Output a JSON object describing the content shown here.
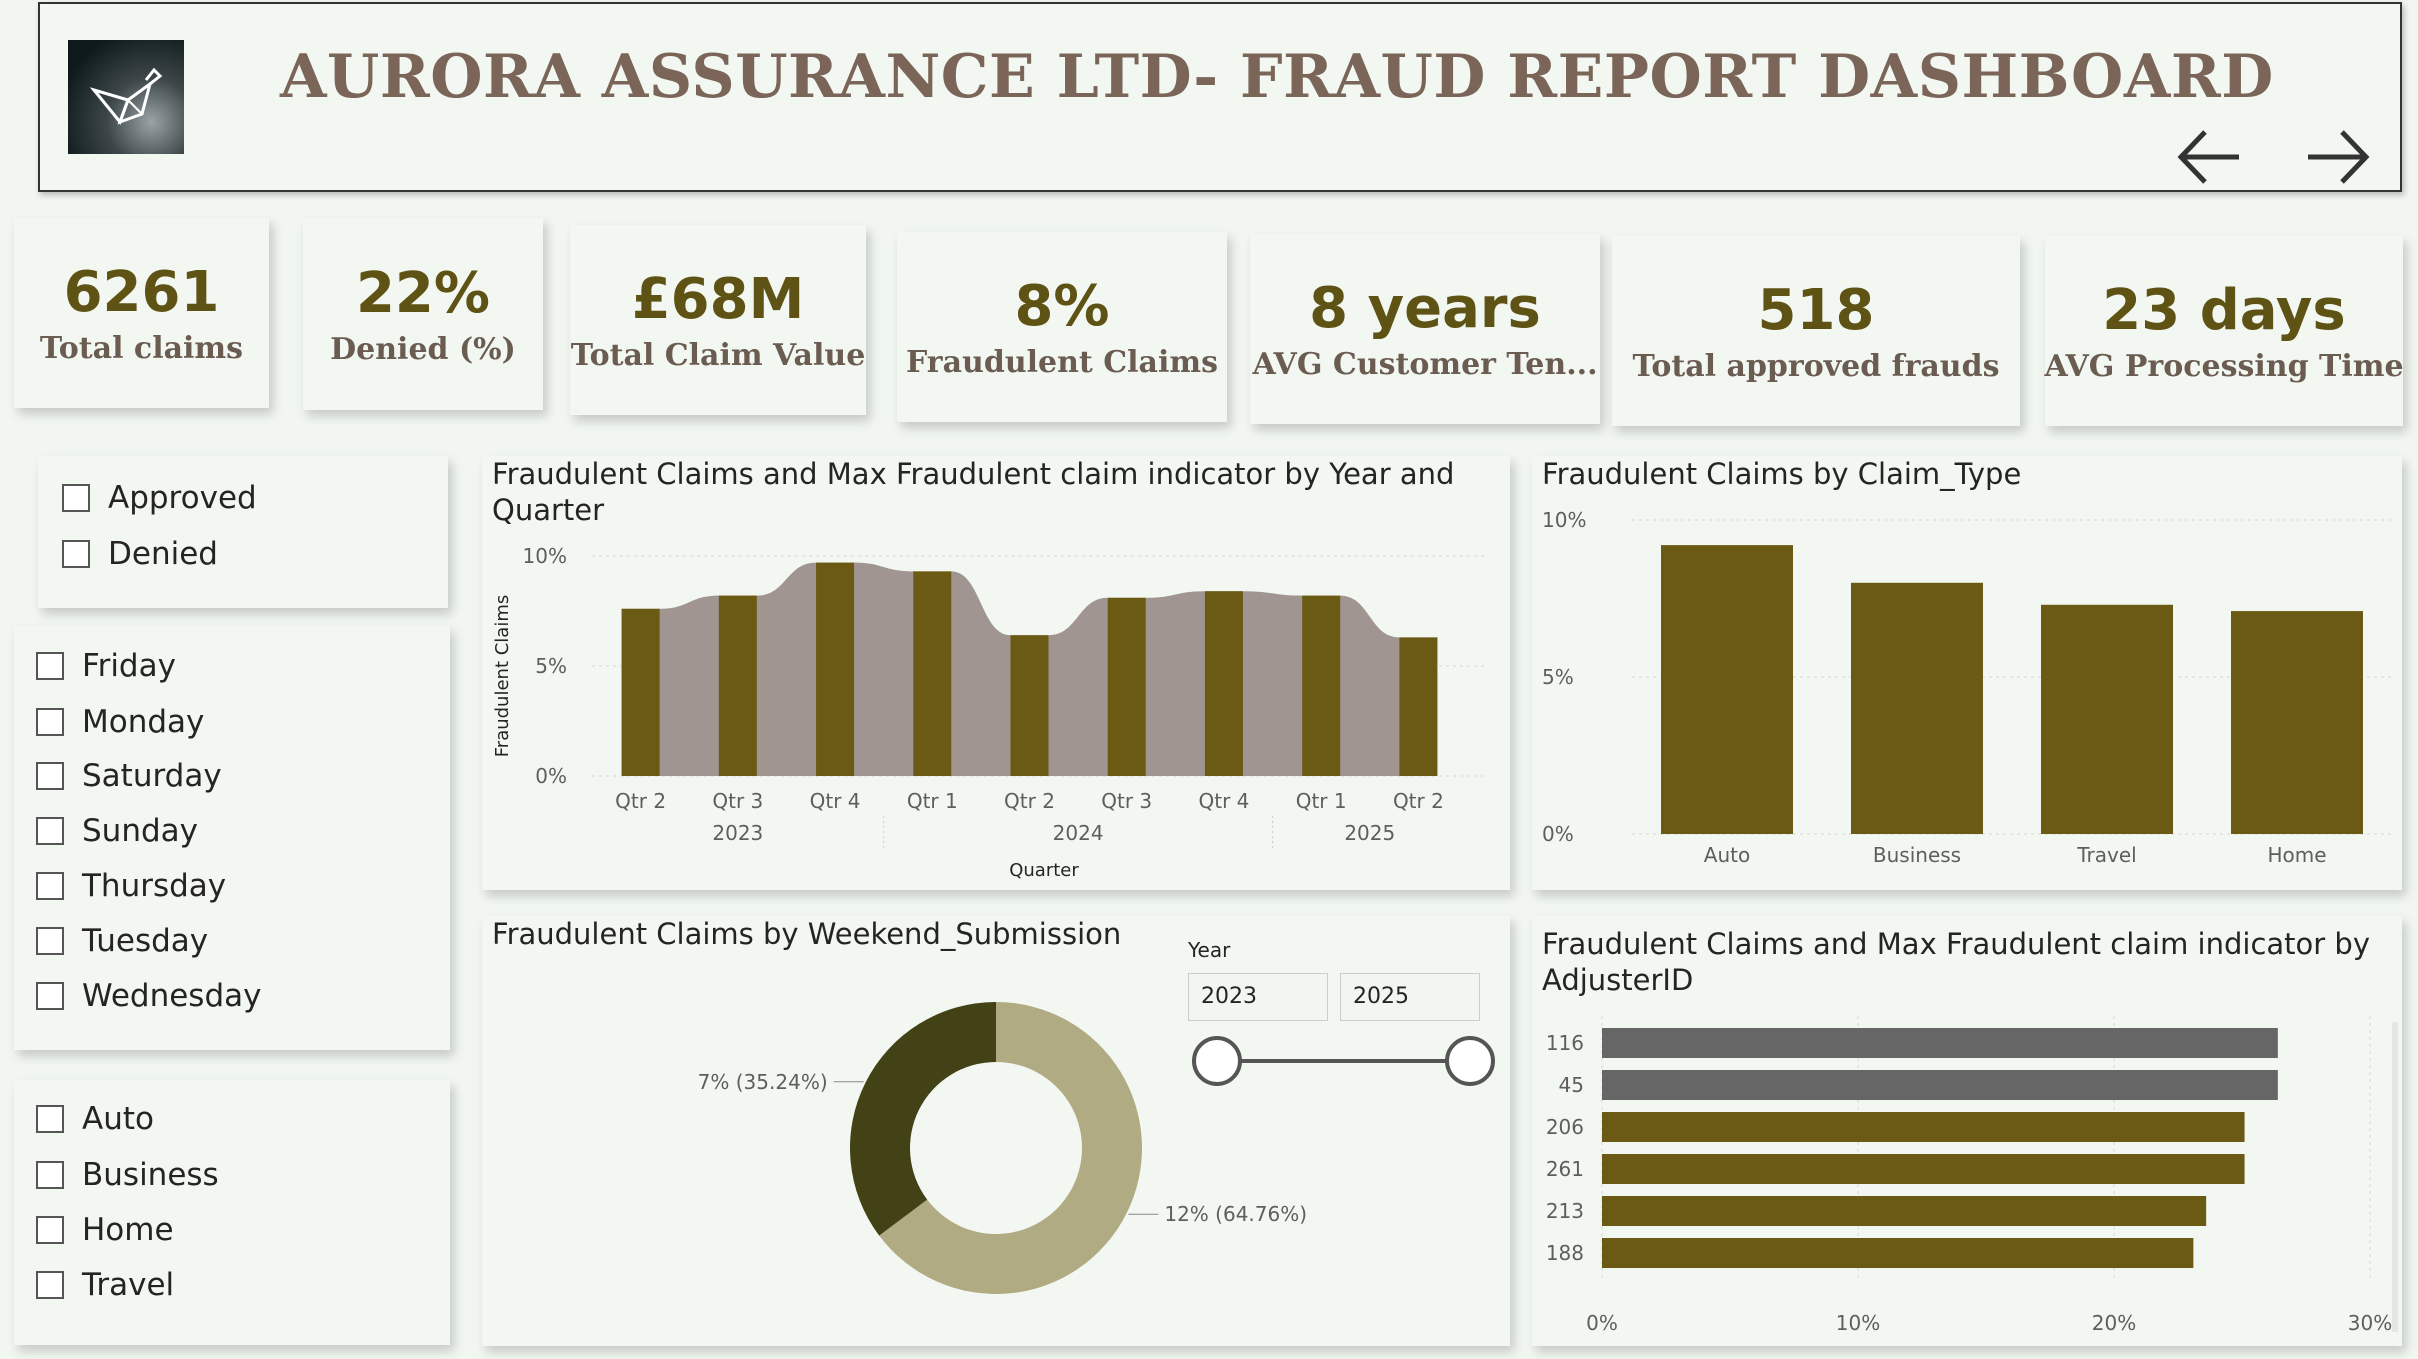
{
  "header": {
    "title": "AURORA ASSURANCE LTD- FRAUD REPORT DASHBOARD",
    "logo": "bird-origami-icon",
    "nav_prev": "arrow-left-icon",
    "nav_next": "arrow-right-icon"
  },
  "kpis": [
    {
      "value": "6261",
      "label": "Total claims"
    },
    {
      "value": "22%",
      "label": "Denied (%)"
    },
    {
      "value": "£68M",
      "label": "Total Claim Value"
    },
    {
      "value": "8%",
      "label": "Fraudulent Claims"
    },
    {
      "value": "8 years",
      "label": "AVG Customer Ten..."
    },
    {
      "value": "518",
      "label": "Total approved frauds"
    },
    {
      "value": "23 days",
      "label": "AVG Processing Time"
    }
  ],
  "slicers": {
    "status": [
      "Approved",
      "Denied"
    ],
    "days": [
      "Friday",
      "Monday",
      "Saturday",
      "Sunday",
      "Thursday",
      "Tuesday",
      "Wednesday"
    ],
    "claim_types": [
      "Auto",
      "Business",
      "Home",
      "Travel"
    ]
  },
  "year_slider": {
    "label": "Year",
    "min": "2023",
    "max": "2025"
  },
  "colors": {
    "olive": "#6b5a14",
    "taupe": "#a09591",
    "dark_olive": "#424216",
    "khaki": "#b0ab82",
    "grey": "#666666"
  },
  "chart_data": [
    {
      "type": "bar",
      "title": "Fraudulent Claims and Max Fraudulent claim indicator by Year and Quarter",
      "xlabel": "Quarter",
      "ylabel": "Fraudulent Claims",
      "ylim": [
        0,
        10
      ],
      "yticks": [
        "0%",
        "5%",
        "10%"
      ],
      "categories": [
        "Qtr 2",
        "Qtr 3",
        "Qtr 4",
        "Qtr 1",
        "Qtr 2",
        "Qtr 3",
        "Qtr 4",
        "Qtr 1",
        "Qtr 2"
      ],
      "year_groups": [
        {
          "label": "2023",
          "span": 3
        },
        {
          "label": "2024",
          "span": 4
        },
        {
          "label": "2025",
          "span": 2
        }
      ],
      "series": [
        {
          "values": [
            7.6,
            8.2,
            9.7,
            9.3,
            6.4,
            8.1,
            8.4,
            8.2,
            6.3
          ]
        }
      ]
    },
    {
      "type": "bar",
      "title": "Fraudulent Claims by Claim_Type",
      "ylim": [
        0,
        10
      ],
      "yticks": [
        "0%",
        "5%",
        "10%"
      ],
      "categories": [
        "Auto",
        "Business",
        "Travel",
        "Home"
      ],
      "values": [
        9.2,
        8.0,
        7.3,
        7.1
      ]
    },
    {
      "type": "pie",
      "title": "Fraudulent Claims by Weekend_Submission",
      "slices": [
        {
          "value": 35.24,
          "label": "7% (35.24%)"
        },
        {
          "value": 64.76,
          "label": "12% (64.76%)"
        }
      ]
    },
    {
      "type": "bar",
      "orientation": "horizontal",
      "title": "Fraudulent Claims and Max Fraudulent claim indicator by AdjusterID",
      "xlim": [
        0,
        30
      ],
      "xticks": [
        "0%",
        "10%",
        "20%",
        "30%"
      ],
      "categories": [
        "116",
        "45",
        "206",
        "261",
        "213",
        "188"
      ],
      "values": [
        26.4,
        26.4,
        25.1,
        25.1,
        23.6,
        23.1
      ],
      "highlight": [
        true,
        true,
        false,
        false,
        false,
        false
      ]
    }
  ]
}
